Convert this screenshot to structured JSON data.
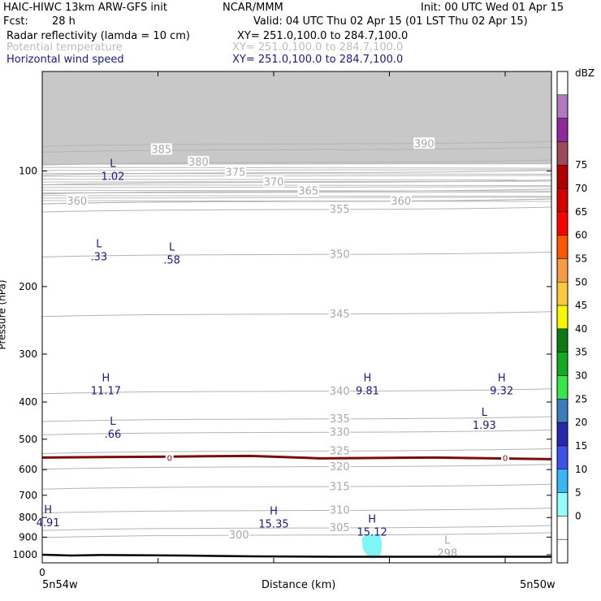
{
  "header": {
    "model": "HAIC-HIWC 13km ARW-GFS init",
    "org": "NCAR/MMM",
    "init": "Init: 00 UTC Wed 01 Apr 15",
    "fcst_label": "Fcst:",
    "fcst_value": "28 h",
    "valid": "Valid: 04 UTC Thu 02 Apr 15 (01 LST Thu 02 Apr 15)",
    "fields": [
      {
        "name": "Radar reflectivity (lamda = 10 cm)",
        "xy": "XY= 251.0,100.0 to 284.7,100.0"
      },
      {
        "name": "Potential temperature",
        "xy": "XY= 251.0,100.0 to 284.7,100.0"
      },
      {
        "name": "Horizontal wind speed",
        "xy": "XY= 251.0,100.0 to 284.7,100.0"
      }
    ]
  },
  "colors": {
    "reflectivity_field": "#000000",
    "theta_field": "#bdbdbd",
    "wind_field": "#1a1a80",
    "freezing_line": "#7b0c0c",
    "terrain": "#000000"
  },
  "chart_data": {
    "type": "cross-section",
    "xlabel": "Distance (km)",
    "ylabel": "Pressure (hPa)",
    "x_ticks": [
      {
        "value": 0,
        "label": "0"
      },
      {
        "value": 1,
        "label": ""
      },
      {
        "value": 2,
        "label": ""
      },
      {
        "value": 3,
        "label": ""
      },
      {
        "value": 4,
        "label": ""
      }
    ],
    "x_endpoints": {
      "left": "5n54w",
      "right": "5n50w"
    },
    "xlim": [
      0,
      4.4
    ],
    "y_ticks": [
      100,
      200,
      300,
      400,
      500,
      600,
      700,
      800,
      900,
      1000
    ],
    "ylim": [
      55,
      1050
    ],
    "theta_contours": [
      {
        "value": 300,
        "label": "300",
        "x": 1.7,
        "p": 889
      },
      {
        "value": 305,
        "label": "305",
        "x": 2.57,
        "p": 852
      },
      {
        "value": 310,
        "label": "310",
        "x": 2.57,
        "p": 767
      },
      {
        "value": 315,
        "label": "315",
        "x": 2.57,
        "p": 665
      },
      {
        "value": 320,
        "label": "320",
        "x": 2.57,
        "p": 590
      },
      {
        "value": 325,
        "label": "325",
        "x": 2.57,
        "p": 537
      },
      {
        "value": 330,
        "label": "330",
        "x": 2.57,
        "p": 480
      },
      {
        "value": 335,
        "label": "335",
        "x": 2.57,
        "p": 443
      },
      {
        "value": 340,
        "label": "340",
        "x": 2.57,
        "p": 375
      },
      {
        "value": 345,
        "label": "345",
        "x": 2.57,
        "p": 236
      },
      {
        "value": 350,
        "label": "350",
        "x": 2.57,
        "p": 165
      },
      {
        "value": 355,
        "label": "355",
        "x": 2.57,
        "p": 126
      },
      {
        "value": 360,
        "label": "360",
        "x": 0.3,
        "p": 120
      },
      {
        "value": 360,
        "label": "360",
        "x": 3.1,
        "p": 120
      },
      {
        "value": 365,
        "label": "365",
        "x": 2.3,
        "p": 113
      },
      {
        "value": 370,
        "label": "370",
        "x": 2.0,
        "p": 107
      },
      {
        "value": 375,
        "label": "375",
        "x": 1.67,
        "p": 101
      },
      {
        "value": 380,
        "label": "380",
        "x": 1.35,
        "p": 95
      },
      {
        "value": 385,
        "label": "385",
        "x": 1.03,
        "p": 88
      },
      {
        "value": 390,
        "label": "390",
        "x": 3.3,
        "p": 85
      }
    ],
    "theta_extrema": [
      {
        "type": "L",
        "value": "298",
        "x": 3.5,
        "p": 955
      }
    ],
    "wind_extrema": [
      {
        "type": "L",
        "value": "1.02",
        "x": 0.61,
        "p": 100
      },
      {
        "type": "L",
        "value": ".33",
        "x": 0.49,
        "p": 162
      },
      {
        "type": "L",
        "value": ".58",
        "x": 1.12,
        "p": 165
      },
      {
        "type": "H",
        "value": "11.17",
        "x": 0.55,
        "p": 362
      },
      {
        "type": "H",
        "value": "9.81",
        "x": 2.81,
        "p": 362
      },
      {
        "type": "H",
        "value": "9.32",
        "x": 3.97,
        "p": 362
      },
      {
        "type": "L",
        "value": ".66",
        "x": 0.61,
        "p": 470
      },
      {
        "type": "L",
        "value": "1.93",
        "x": 3.82,
        "p": 445
      },
      {
        "type": "H",
        "value": "4.91",
        "x": 0.05,
        "p": 800
      },
      {
        "type": "H",
        "value": "15.35",
        "x": 2.0,
        "p": 805
      },
      {
        "type": "H",
        "value": "15.12",
        "x": 2.85,
        "p": 845
      }
    ],
    "freezing_level": {
      "label": "0",
      "value": 0,
      "p": 558,
      "label_x": [
        1.1,
        4.0
      ]
    },
    "reflectivity_echo": {
      "x": 2.85,
      "p": 946,
      "dbz": 5
    },
    "terrain_pressure": [
      {
        "x": 0.0,
        "p": 1000
      },
      {
        "x": 0.25,
        "p": 1005
      },
      {
        "x": 0.5,
        "p": 1002
      },
      {
        "x": 0.8,
        "p": 1003
      },
      {
        "x": 1.2,
        "p": 1005
      },
      {
        "x": 1.8,
        "p": 1010
      },
      {
        "x": 2.5,
        "p": 1012
      },
      {
        "x": 3.5,
        "p": 1012
      },
      {
        "x": 4.4,
        "p": 1012
      }
    ],
    "colorbar": {
      "unit": "dBZ",
      "levels": [
        0,
        5,
        10,
        15,
        20,
        25,
        30,
        35,
        40,
        45,
        50,
        55,
        60,
        65,
        70,
        75
      ],
      "colors": [
        "#ffffff",
        "#ffffff",
        "#94ffff",
        "#37b8f4",
        "#3d52e6",
        "#2828ac",
        "#3d7cbb",
        "#34e848",
        "#12aa1e",
        "#0e7a14",
        "#f7f700",
        "#fbca3c",
        "#f99a44",
        "#fd5800",
        "#ff0000",
        "#d40000",
        "#b00000",
        "#9c4a5a",
        "#902a9a",
        "#b07ac0",
        "#ffffff"
      ]
    }
  }
}
